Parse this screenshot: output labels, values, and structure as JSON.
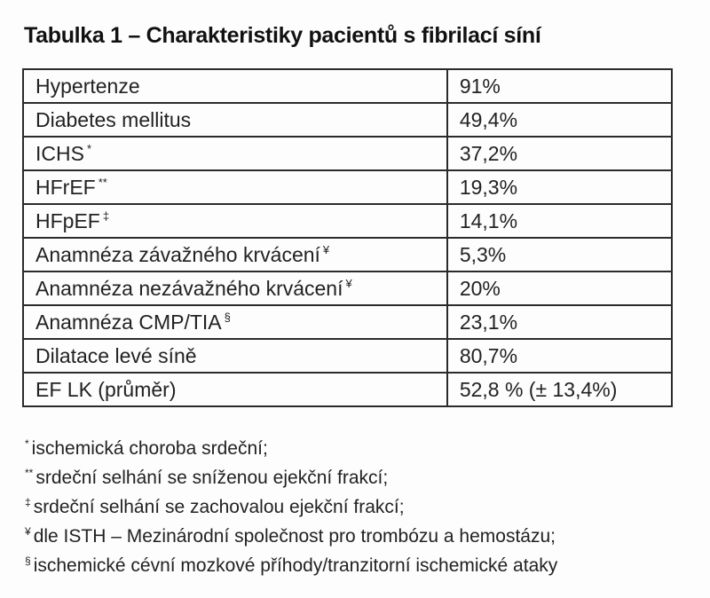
{
  "title": "Tabulka 1 – Charakteristiky pacientů s fibrilací síní",
  "colors": {
    "background": "#fdfdfd",
    "text": "#222222",
    "border": "#2b2b2b"
  },
  "table": {
    "rows": [
      {
        "label": "Hypertenze",
        "marker": "",
        "value": "91%"
      },
      {
        "label": "Diabetes mellitus",
        "marker": "",
        "value": "49,4%"
      },
      {
        "label": "ICHS",
        "marker": "*",
        "value": "37,2%"
      },
      {
        "label": "HFrEF",
        "marker": "**",
        "value": "19,3%"
      },
      {
        "label": "HFpEF",
        "marker": "‡",
        "value": "14,1%"
      },
      {
        "label": "Anamnéza závažného krvácení",
        "marker": "¥",
        "value": "5,3%"
      },
      {
        "label": "Anamnéza nezávažného krvácení",
        "marker": "¥",
        "value": "20%"
      },
      {
        "label": "Anamnéza CMP/TIA",
        "marker": "§",
        "value": "23,1%"
      },
      {
        "label": "Dilatace levé síně",
        "marker": "",
        "value": "80,7%"
      },
      {
        "label": "EF LK (průměr)",
        "marker": "",
        "value": "52,8 % (± 13,4%)"
      }
    ]
  },
  "footnotes": [
    {
      "marker": "*",
      "text": "ischemická choroba srdeční;"
    },
    {
      "marker": "**",
      "text": "srdeční selhání se sníženou ejekční frakcí;"
    },
    {
      "marker": "‡",
      "text": "srdeční selhání se zachovalou ejekční frakcí;"
    },
    {
      "marker": "¥",
      "text": "dle ISTH – Mezinárodní společnost pro trombózu a hemostázu;"
    },
    {
      "marker": "§",
      "text": "ischemické cévní mozkové příhody/tranzitorní ischemické ataky"
    }
  ],
  "chart_data": {
    "type": "table",
    "title": "Tabulka 1 – Charakteristiky pacientů s fibrilací síní",
    "categories": [
      "Hypertenze",
      "Diabetes mellitus",
      "ICHS",
      "HFrEF",
      "HFpEF",
      "Anamnéza závažného krvácení",
      "Anamnéza nezávažného krvácení",
      "Anamnéza CMP/TIA",
      "Dilatace levé síně",
      "EF LK (průměr)"
    ],
    "values": [
      91,
      49.4,
      37.2,
      19.3,
      14.1,
      5.3,
      20,
      23.1,
      80.7,
      52.8
    ],
    "value_labels": [
      "91%",
      "49,4%",
      "37,2%",
      "19,3%",
      "14,1%",
      "5,3%",
      "20%",
      "23,1%",
      "80,7%",
      "52,8 % (± 13,4%)"
    ]
  }
}
